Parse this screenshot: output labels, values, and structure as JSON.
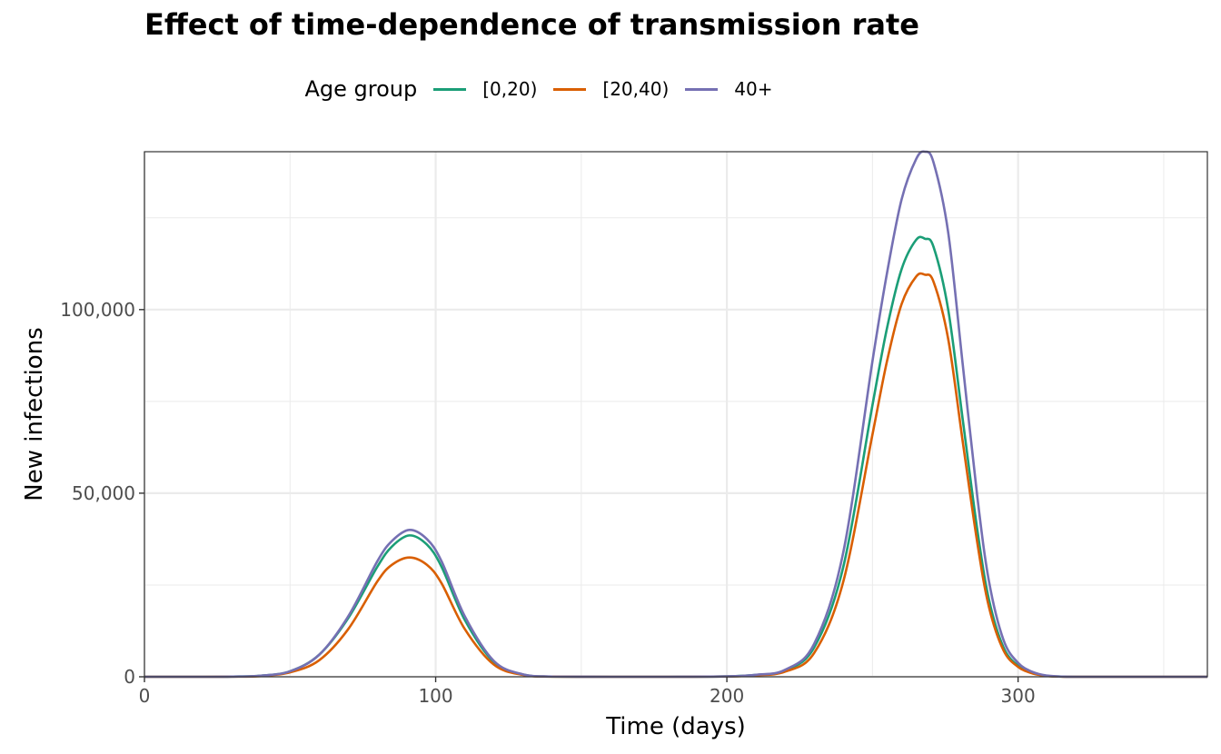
{
  "chart_data": {
    "type": "line",
    "title": "Effect of time-dependence of transmission rate",
    "xlabel": "Time (days)",
    "ylabel": "New infections",
    "xlim": [
      0,
      365
    ],
    "ylim": [
      0,
      143000
    ],
    "x_ticks": [
      0,
      100,
      200,
      300
    ],
    "x_tick_labels": [
      "0",
      "100",
      "200",
      "300"
    ],
    "y_ticks": [
      0,
      50000,
      100000
    ],
    "y_tick_labels": [
      "0",
      "50,000",
      "100,000"
    ],
    "grid": true,
    "legend": {
      "title": "Age group",
      "placement": "top"
    },
    "x": [
      0,
      20,
      30,
      40,
      50,
      60,
      70,
      80,
      85,
      91,
      97,
      102,
      110,
      120,
      130,
      140,
      160,
      180,
      200,
      210,
      220,
      230,
      240,
      250,
      255,
      260,
      265,
      268,
      271,
      276,
      281,
      286,
      290,
      295,
      300,
      305,
      310,
      315,
      320,
      340,
      365
    ],
    "series": [
      {
        "name": "[0,20)",
        "color": "#1b9e77",
        "values": [
          0,
          0,
          50,
          300,
          1500,
          6000,
          16000,
          30000,
          35500,
          38500,
          36000,
          30000,
          15500,
          4000,
          600,
          50,
          0,
          0,
          100,
          500,
          1700,
          8000,
          30000,
          74000,
          95000,
          111000,
          119000,
          119300,
          117000,
          100000,
          70000,
          40000,
          21000,
          8000,
          3000,
          1000,
          250,
          50,
          0,
          0,
          0
        ]
      },
      {
        "name": "[20,40)",
        "color": "#d95f02",
        "values": [
          0,
          0,
          30,
          200,
          1200,
          4500,
          13000,
          26000,
          30500,
          32500,
          30500,
          25500,
          13000,
          3300,
          500,
          40,
          0,
          0,
          80,
          400,
          1400,
          6500,
          26000,
          66000,
          86000,
          101500,
          109000,
          109500,
          107500,
          92000,
          64000,
          36500,
          19000,
          7200,
          2700,
          900,
          220,
          40,
          0,
          0,
          0
        ]
      },
      {
        "name": "40+",
        "color": "#7570b3",
        "values": [
          0,
          0,
          50,
          300,
          1500,
          6000,
          16500,
          31500,
          37000,
          40000,
          37500,
          31500,
          16500,
          4300,
          650,
          60,
          0,
          0,
          100,
          550,
          1900,
          9000,
          34000,
          86000,
          110000,
          130000,
          141000,
          143000,
          140000,
          121000,
          85000,
          49000,
          26000,
          10000,
          3800,
          1300,
          320,
          60,
          0,
          0,
          0
        ]
      }
    ]
  }
}
